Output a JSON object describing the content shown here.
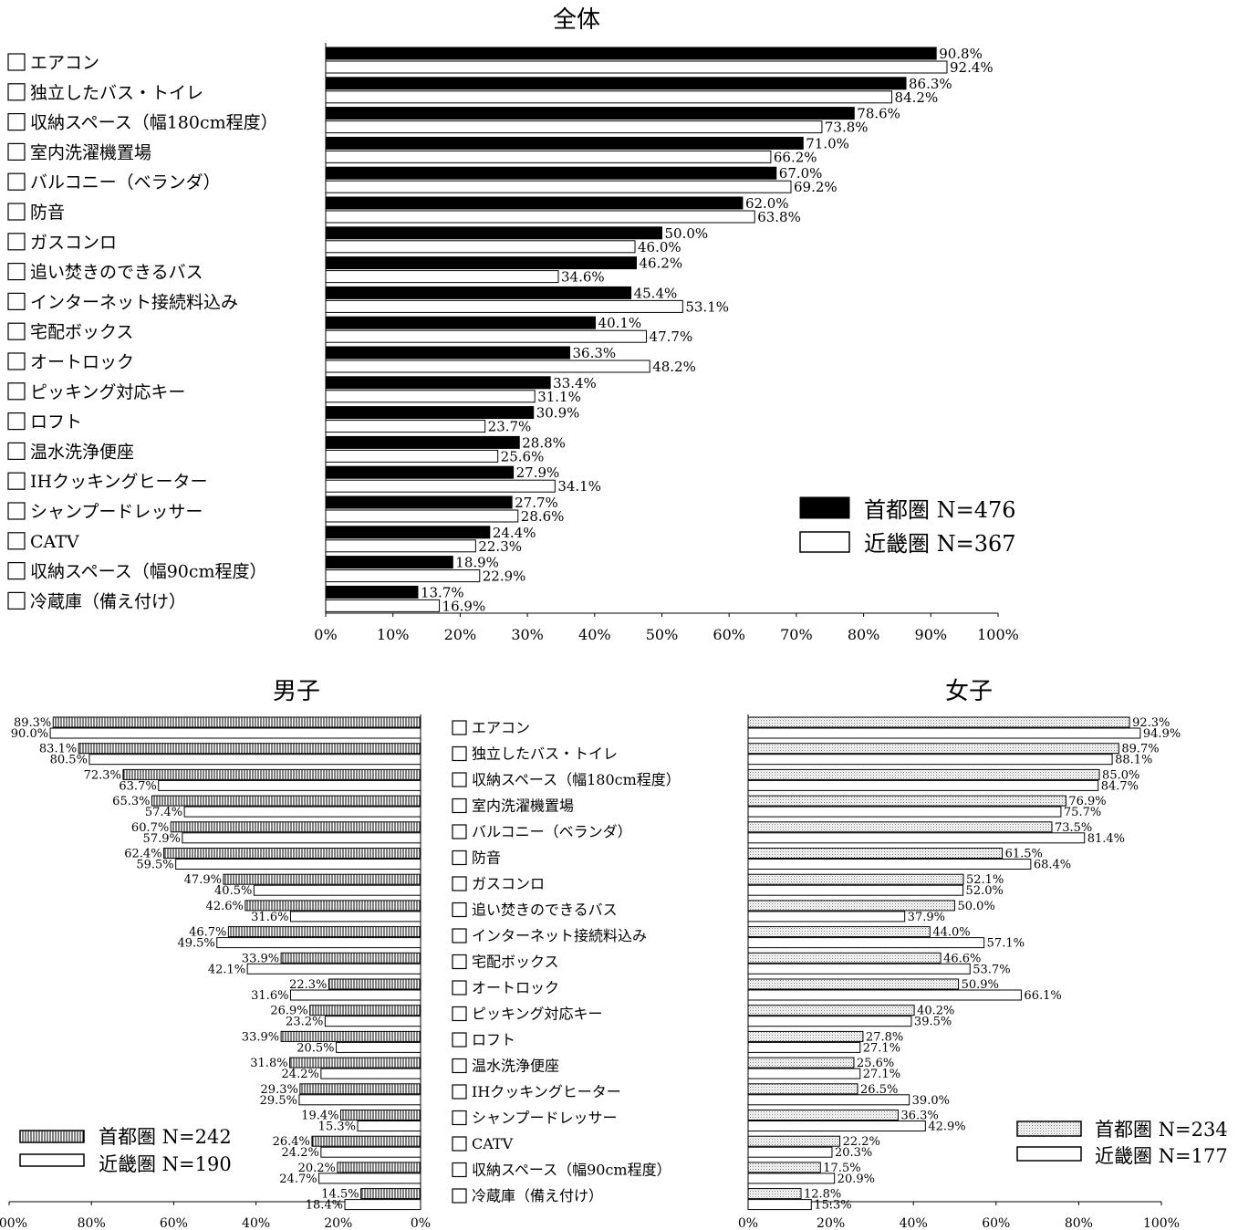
{
  "colors": {
    "tokyo_solid": "#000000",
    "kinki": "#ffffff",
    "stroke": "#000000"
  },
  "chart_data": [
    {
      "type": "bar",
      "orientation": "horizontal",
      "title": "全体",
      "categories": [
        "エアコン",
        "独立したバス・トイレ",
        "収納スペース（幅180cm程度）",
        "室内洗濯機置場",
        "バルコニー（ベランダ）",
        "防音",
        "ガスコンロ",
        "追い焚きのできるバス",
        "インターネット接続料込み",
        "宅配ボックス",
        "オートロック",
        "ピッキング対応キー",
        "ロフト",
        "温水洗浄便座",
        "IHクッキングヒーター",
        "シャンプードレッサー",
        "CATV",
        "収納スペース（幅90cm程度）",
        "冷蔵庫（備え付け）"
      ],
      "series": [
        {
          "name": "首都圏 N=476",
          "fill": "solid",
          "values": [
            90.8,
            86.3,
            78.6,
            71.0,
            67.0,
            62.0,
            50.0,
            46.2,
            45.4,
            40.1,
            36.3,
            33.4,
            30.9,
            28.8,
            27.9,
            27.7,
            24.4,
            18.9,
            13.7
          ],
          "labels": [
            "90.8%",
            "86.3%",
            "78.6%",
            "71.0%",
            "67.0%",
            "62.0%",
            "50.0%",
            "46.2%",
            "45.4%",
            "40.1%",
            "36.3%",
            "33.4%",
            "30.9%",
            "28.8%",
            "27.9%",
            "27.7%",
            "24.4%",
            "18.9%",
            "13.7%"
          ]
        },
        {
          "name": "近畿圏 N=367",
          "fill": "white",
          "values": [
            92.4,
            84.2,
            73.8,
            66.2,
            69.2,
            63.8,
            46.0,
            34.6,
            53.1,
            47.7,
            48.2,
            31.1,
            23.7,
            25.6,
            34.1,
            28.6,
            22.3,
            22.9,
            16.9
          ],
          "labels": [
            "92.4%",
            "84.2%",
            "73.8%",
            "66.2%",
            "69.2%",
            "63.8%",
            "46.0%",
            "34.6%",
            "53.1%",
            "47.7%",
            "48.2%",
            "31.1%",
            "23.7%",
            "25.6%",
            "34.1%",
            "28.6%",
            "22.3%",
            "22.9%",
            "16.9%"
          ]
        }
      ],
      "xlim": [
        0,
        100
      ],
      "xticks": [
        "0%",
        "10%",
        "20%",
        "30%",
        "40%",
        "50%",
        "60%",
        "70%",
        "80%",
        "90%",
        "100%"
      ],
      "legend_position": "bottom-right"
    },
    {
      "type": "bar",
      "orientation": "horizontal",
      "direction": "right-to-left",
      "title": "男子",
      "categories": [
        "エアコン",
        "独立したバス・トイレ",
        "収納スペース（幅180cm程度）",
        "室内洗濯機置場",
        "バルコニー（ベランダ）",
        "防音",
        "ガスコンロ",
        "追い焚きのできるバス",
        "インターネット接続料込み",
        "宅配ボックス",
        "オートロック",
        "ピッキング対応キー",
        "ロフト",
        "温水洗浄便座",
        "IHクッキングヒーター",
        "シャンプードレッサー",
        "CATV",
        "収納スペース（幅90cm程度）",
        "冷蔵庫（備え付け）"
      ],
      "series": [
        {
          "name": "首都圏 N=242",
          "fill": "vertical-stripes",
          "values": [
            89.3,
            83.1,
            72.3,
            65.3,
            60.7,
            62.4,
            47.9,
            42.6,
            46.7,
            33.9,
            22.3,
            26.9,
            33.9,
            31.8,
            29.3,
            19.4,
            26.4,
            20.2,
            14.5
          ],
          "labels": [
            "89.3%",
            "83.1%",
            "72.3%",
            "65.3%",
            "60.7%",
            "62.4%",
            "47.9%",
            "42.6%",
            "46.7%",
            "33.9%",
            "22.3%",
            "26.9%",
            "33.9%",
            "31.8%",
            "29.3%",
            "19.4%",
            "26.4%",
            "20.2%",
            "14.5%"
          ]
        },
        {
          "name": "近畿圏 N=190",
          "fill": "white",
          "values": [
            90.0,
            80.5,
            63.7,
            57.4,
            57.9,
            59.5,
            40.5,
            31.6,
            49.5,
            42.1,
            31.6,
            23.2,
            20.5,
            24.2,
            29.5,
            15.3,
            24.2,
            24.7,
            18.4
          ],
          "labels": [
            "90.0%",
            "80.5%",
            "63.7%",
            "57.4%",
            "57.9%",
            "59.5%",
            "40.5%",
            "31.6%",
            "49.5%",
            "42.1%",
            "31.6%",
            "23.2%",
            "20.5%",
            "24.2%",
            "29.5%",
            "15.3%",
            "24.2%",
            "24.7%",
            "18.4%"
          ]
        }
      ],
      "xlim": [
        0,
        100
      ],
      "xticks": [
        "100%",
        "80%",
        "60%",
        "40%",
        "20%",
        "0%"
      ],
      "legend_position": "bottom-left"
    },
    {
      "type": "bar",
      "orientation": "horizontal",
      "title": "女子",
      "categories": [
        "エアコン",
        "独立したバス・トイレ",
        "収納スペース（幅180cm程度）",
        "室内洗濯機置場",
        "バルコニー（ベランダ）",
        "防音",
        "ガスコンロ",
        "追い焚きのできるバス",
        "インターネット接続料込み",
        "宅配ボックス",
        "オートロック",
        "ピッキング対応キー",
        "ロフト",
        "温水洗浄便座",
        "IHクッキングヒーター",
        "シャンプードレッサー",
        "CATV",
        "収納スペース（幅90cm程度）",
        "冷蔵庫（備え付け）"
      ],
      "series": [
        {
          "name": "首都圏 N=234",
          "fill": "dots",
          "values": [
            92.3,
            89.7,
            85.0,
            76.9,
            73.5,
            61.5,
            52.1,
            50.0,
            44.0,
            46.6,
            50.9,
            40.2,
            27.8,
            25.6,
            26.5,
            36.3,
            22.2,
            17.5,
            12.8
          ],
          "labels": [
            "92.3%",
            "89.7%",
            "85.0%",
            "76.9%",
            "73.5%",
            "61.5%",
            "52.1%",
            "50.0%",
            "44.0%",
            "46.6%",
            "50.9%",
            "40.2%",
            "27.8%",
            "25.6%",
            "26.5%",
            "36.3%",
            "22.2%",
            "17.5%",
            "12.8%"
          ]
        },
        {
          "name": "近畿圏 N=177",
          "fill": "white",
          "values": [
            94.9,
            88.1,
            84.7,
            75.7,
            81.4,
            68.4,
            52.0,
            37.9,
            57.1,
            53.7,
            66.1,
            39.5,
            27.1,
            27.1,
            39.0,
            42.9,
            20.3,
            20.9,
            15.3
          ],
          "labels": [
            "94.9%",
            "88.1%",
            "84.7%",
            "75.7%",
            "81.4%",
            "68.4%",
            "52.0%",
            "37.9%",
            "57.1%",
            "53.7%",
            "66.1%",
            "39.5%",
            "27.1%",
            "27.1%",
            "39.0%",
            "42.9%",
            "20.3%",
            "20.9%",
            "15.3%"
          ]
        }
      ],
      "xlim": [
        0,
        100
      ],
      "xticks": [
        "0%",
        "20%",
        "40%",
        "60%",
        "80%",
        "100%"
      ],
      "legend_position": "bottom-right"
    }
  ]
}
